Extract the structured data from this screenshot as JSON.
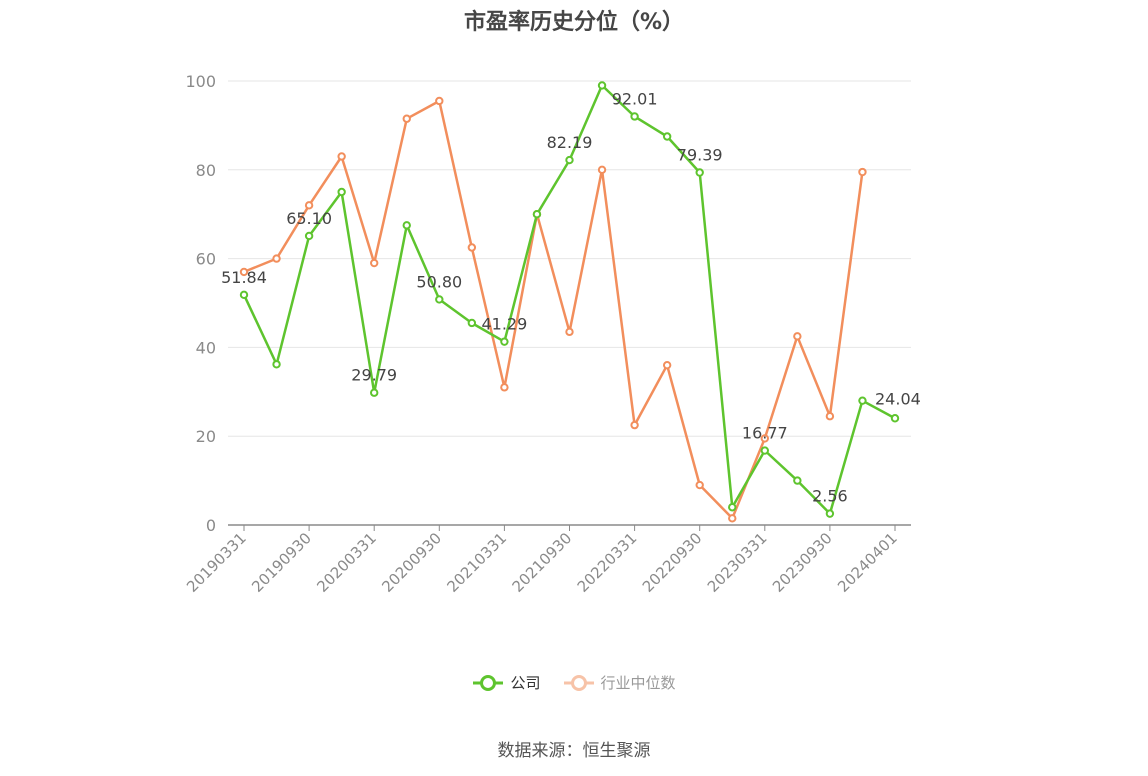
{
  "title": "市盈率历史分位（%）",
  "source": "数据来源：恒生聚源",
  "colors": {
    "company": "#5ec42e",
    "industry": "#f28e5c",
    "grid": "#e6e6e6",
    "axis": "#8a8a8a",
    "text": "#8a8a8a"
  },
  "chart_data": {
    "type": "line",
    "title": "市盈率历史分位（%）",
    "ylim": [
      0,
      100
    ],
    "yticks": [
      0,
      20,
      40,
      60,
      80,
      100
    ],
    "grid": true,
    "legend_position": "bottom-center",
    "x": [
      "20190331",
      "20190630",
      "20190930",
      "20191231",
      "20200331",
      "20200630",
      "20200930",
      "20201231",
      "20210331",
      "20210630",
      "20210930",
      "20211231",
      "20220331",
      "20220630",
      "20220930",
      "20221231",
      "20230331",
      "20230630",
      "20230930",
      "20231231",
      "20240401"
    ],
    "xticks": [
      "20190331",
      "20190930",
      "20200331",
      "20200930",
      "20210331",
      "20210930",
      "20220331",
      "20220930",
      "20230331",
      "20230930",
      "20240401"
    ],
    "series": [
      {
        "name": "公司",
        "color": "#5ec42e",
        "values": [
          51.84,
          36.2,
          65.1,
          75.0,
          29.79,
          67.5,
          50.8,
          45.5,
          41.29,
          70.0,
          82.19,
          99.0,
          92.01,
          87.5,
          79.39,
          4.0,
          16.77,
          10.0,
          2.56,
          28.0,
          24.04
        ],
        "labels": {
          "0": "51.84",
          "2": "65.10",
          "4": "29.79",
          "6": "50.80",
          "8": "41.29",
          "10": "82.19",
          "12": "92.01",
          "14": "79.39",
          "16": "16.77",
          "18": "2.56",
          "20": "24.04"
        }
      },
      {
        "name": "行业中位数",
        "color": "#f28e5c",
        "values": [
          57.0,
          60.0,
          72.0,
          83.0,
          59.0,
          91.5,
          95.5,
          62.5,
          31.0,
          70.0,
          43.5,
          80.0,
          22.5,
          36.0,
          9.0,
          1.5,
          19.5,
          42.5,
          24.5,
          79.5,
          null
        ]
      }
    ]
  }
}
